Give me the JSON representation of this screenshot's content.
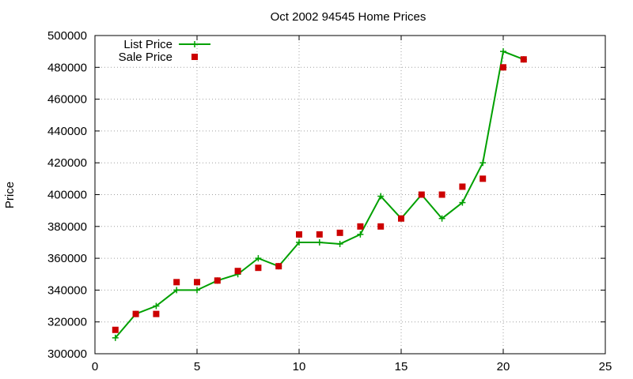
{
  "chart_data": {
    "type": "line",
    "title": "Oct 2002 94545 Home Prices",
    "xlabel": "",
    "ylabel": "Price",
    "xlim": [
      0,
      25
    ],
    "ylim": [
      300000,
      500000
    ],
    "xticks": [
      0,
      5,
      10,
      15,
      20,
      25
    ],
    "yticks": [
      300000,
      320000,
      340000,
      360000,
      380000,
      400000,
      420000,
      440000,
      460000,
      480000,
      500000
    ],
    "grid": true,
    "legend": "top-left",
    "series": [
      {
        "name": "List Price",
        "style": "line-plus",
        "color": "#00a000",
        "x": [
          1,
          2,
          3,
          4,
          5,
          6,
          7,
          8,
          9,
          10,
          11,
          12,
          13,
          14,
          15,
          16,
          17,
          18,
          19,
          20,
          21
        ],
        "y": [
          310000,
          325000,
          330000,
          340000,
          340000,
          346000,
          350000,
          360000,
          355000,
          370000,
          370000,
          369000,
          375000,
          399000,
          385000,
          400000,
          385000,
          395000,
          420000,
          490000,
          485000
        ]
      },
      {
        "name": "Sale Price",
        "style": "square",
        "color": "#cc0000",
        "x": [
          1,
          2,
          3,
          4,
          5,
          6,
          7,
          8,
          9,
          10,
          11,
          12,
          13,
          14,
          15,
          16,
          17,
          18,
          19,
          20,
          21
        ],
        "y": [
          315000,
          325000,
          325000,
          345000,
          345000,
          346000,
          352000,
          354000,
          355000,
          375000,
          375000,
          376000,
          380000,
          380000,
          385000,
          400000,
          400000,
          405000,
          410000,
          480000,
          485000
        ]
      }
    ]
  }
}
